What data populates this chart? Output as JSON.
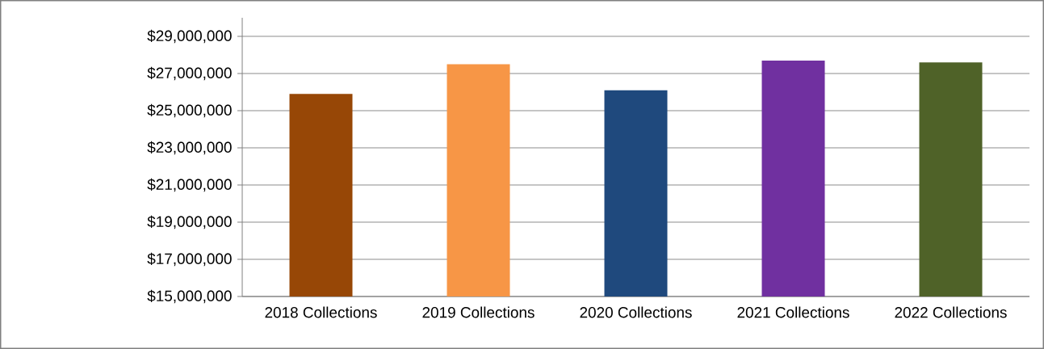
{
  "chart_data": {
    "type": "bar",
    "categories": [
      "2018 Collections",
      "2019 Collections",
      "2020 Collections",
      "2021 Collections",
      "2022 Collections"
    ],
    "values": [
      25900000,
      27500000,
      26100000,
      27700000,
      27600000
    ],
    "colors": [
      "#974706",
      "#f79646",
      "#1f497d",
      "#7030a0",
      "#4f6228"
    ],
    "ylim": [
      15000000,
      30000000
    ],
    "yticks": [
      {
        "value": 15000000,
        "label": "$15,000,000"
      },
      {
        "value": 17000000,
        "label": "$17,000,000"
      },
      {
        "value": 19000000,
        "label": "$19,000,000"
      },
      {
        "value": 21000000,
        "label": "$21,000,000"
      },
      {
        "value": 23000000,
        "label": "$23,000,000"
      },
      {
        "value": 25000000,
        "label": "$25,000,000"
      },
      {
        "value": 27000000,
        "label": "$27,000,000"
      },
      {
        "value": 29000000,
        "label": "$29,000,000"
      }
    ],
    "grid": "y"
  }
}
